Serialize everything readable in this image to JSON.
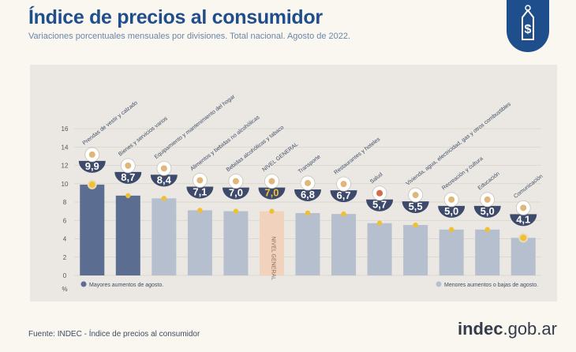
{
  "header": {
    "title": "Índice de precios al consumidor",
    "subtitle": "Variaciones porcentuales mensuales por divisiones. Total nacional. Agosto de 2022."
  },
  "colors": {
    "accent": "#1f4e8c",
    "top_bar": "#5c6d92",
    "other_bar": "#b6bfcd",
    "general_bar": "#f1d2bd",
    "bubble": "#3e4a6b",
    "dot": "#f0c033"
  },
  "chart_data": {
    "type": "bar",
    "unit_label": "%",
    "ylim": [
      0,
      16
    ],
    "yticks": [
      0,
      2,
      4,
      6,
      8,
      10,
      12,
      14,
      16
    ],
    "categories": [
      "Prendas de vestir y calzado",
      "Bienes y servicios varios",
      "Equipamiento y mantenimiento del hogar",
      "Alimentos y bebidas no alcohólicas",
      "Bebidas alcohólicas y tabaco",
      "NIVEL GENERAL",
      "Transporte",
      "Restaurantes y hoteles",
      "Salud",
      "Vivienda, agua, electricidad, gas y otros combustibles",
      "Recreación y cultura",
      "Educación",
      "Comunicación"
    ],
    "values": [
      9.9,
      8.7,
      8.4,
      7.1,
      7.0,
      7.0,
      6.8,
      6.7,
      5.7,
      5.5,
      5.0,
      5.0,
      4.1
    ],
    "value_labels": [
      "9,9",
      "8,7",
      "8,4",
      "7,1",
      "7,0",
      "7,0",
      "6,8",
      "6,7",
      "5,7",
      "5,5",
      "5,0",
      "5,0",
      "4,1"
    ],
    "groups": [
      "top",
      "top",
      "other",
      "other",
      "other",
      "general",
      "other",
      "other",
      "other",
      "other",
      "other",
      "other",
      "other"
    ],
    "icons": [
      "clothes-icon",
      "comb-icon",
      "cabinet-icon",
      "food-icon",
      "bottle-icon",
      "general-level-icon",
      "car-icon",
      "dining-icon",
      "health-cross-icon",
      "utilities-icon",
      "recreation-icon",
      "books-icon",
      "phone-icon"
    ],
    "general_bar_label": "NIVEL GENERAL",
    "legend": {
      "top": "Mayores aumentos de agosto.",
      "other": "Menores aumentos o bajas de agosto."
    }
  },
  "footer": {
    "source": "Fuente: INDEC - Índice de precios al consumidor",
    "logo_main": "indec",
    "logo_suffix": ".gob.ar"
  }
}
